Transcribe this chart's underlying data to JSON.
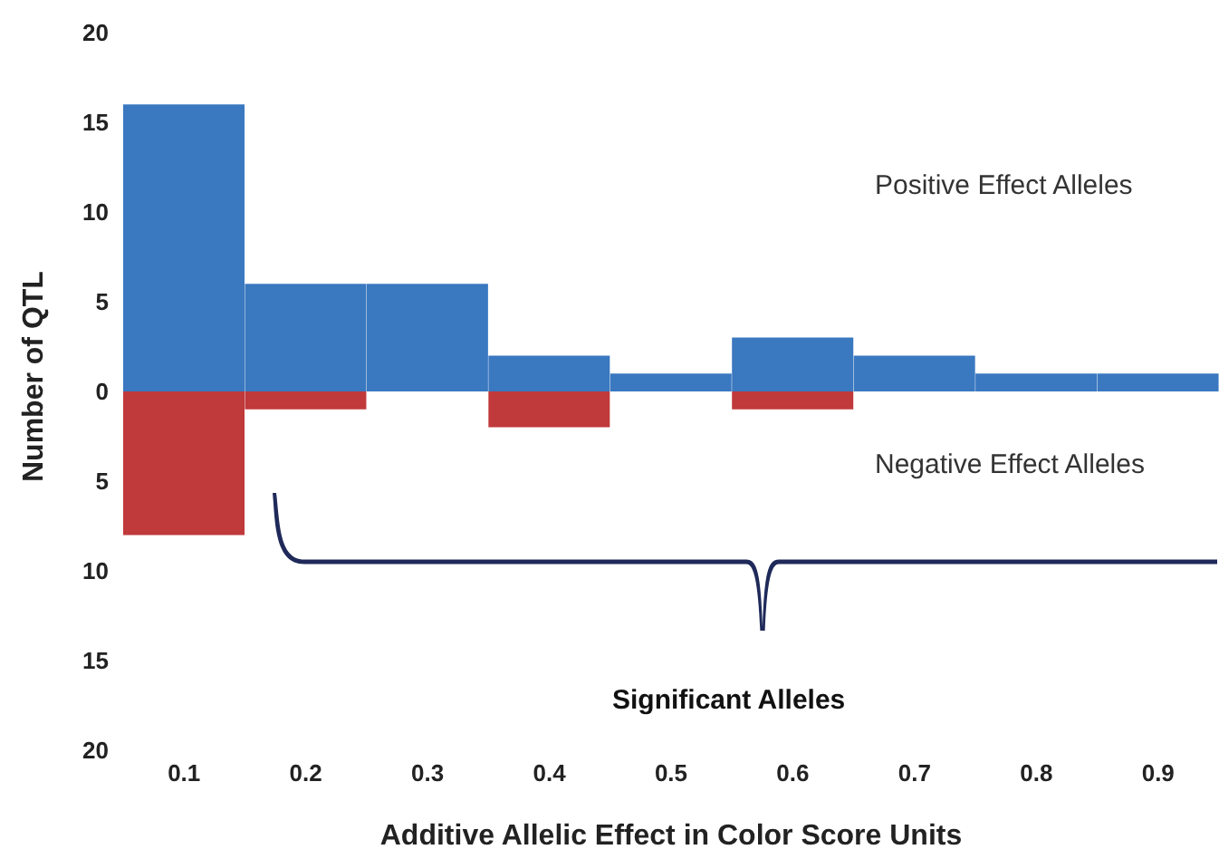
{
  "chart_data": {
    "type": "bar",
    "stacked": true,
    "xlabel": "Additive Allelic Effect in Color Score Units",
    "ylabel": "Number of QTL",
    "categories": [
      "0.1",
      "0.2",
      "0.3",
      "0.4",
      "0.5",
      "0.6",
      "0.7",
      "0.8",
      "0.9"
    ],
    "series": [
      {
        "color": "#3a78c0",
        "values": [
          16,
          6,
          6,
          2,
          1,
          3,
          2,
          1,
          1
        ]
      },
      {
        "color": "#c0393b",
        "values": [
          -8,
          -1,
          0,
          -2,
          0,
          -1,
          0,
          0,
          0
        ]
      }
    ],
    "ylim": [
      -20,
      20
    ],
    "yticks": [
      {
        "value": -20,
        "label": "20"
      },
      {
        "value": -15,
        "label": "15"
      },
      {
        "value": -10,
        "label": "10"
      },
      {
        "value": -5,
        "label": "5"
      },
      0,
      5,
      10,
      15,
      20
    ],
    "annotations": [
      "Positive Effect Alleles",
      "Negative Effect Alleles",
      "Significant Alleles"
    ],
    "grid": false,
    "legend": false
  }
}
